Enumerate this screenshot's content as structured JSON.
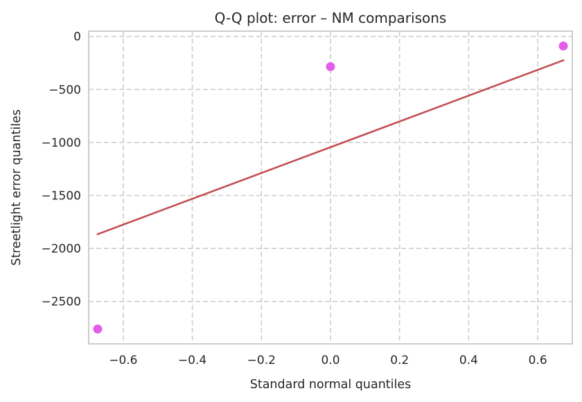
{
  "chart_data": {
    "type": "scatter",
    "title": "Q-Q plot: error – NM comparisons",
    "xlabel": "Standard normal quantiles",
    "ylabel": "Streetlight error quantiles",
    "xlim": [
      -0.7,
      0.7
    ],
    "ylim": [
      -2900,
      50
    ],
    "xticks": [
      -0.6,
      -0.4,
      -0.2,
      0.0,
      0.2,
      0.4,
      0.6
    ],
    "xtick_labels": [
      "−0.6",
      "−0.4",
      "−0.2",
      "0.0",
      "0.2",
      "0.4",
      "0.6"
    ],
    "yticks": [
      0,
      -500,
      -1000,
      -1500,
      -2000,
      -2500
    ],
    "ytick_labels": [
      "0",
      "−500",
      "−1000",
      "−1500",
      "−2000",
      "−2500"
    ],
    "grid": true,
    "series": [
      {
        "kind": "points",
        "x": [
          -0.674,
          0.0,
          0.674
        ],
        "y": [
          -2760,
          -285,
          -90
        ],
        "color": "#e35ee8"
      },
      {
        "kind": "line",
        "x": [
          -0.674,
          0.674
        ],
        "y": [
          -1865,
          -225
        ],
        "color": "#c44e52"
      }
    ]
  }
}
